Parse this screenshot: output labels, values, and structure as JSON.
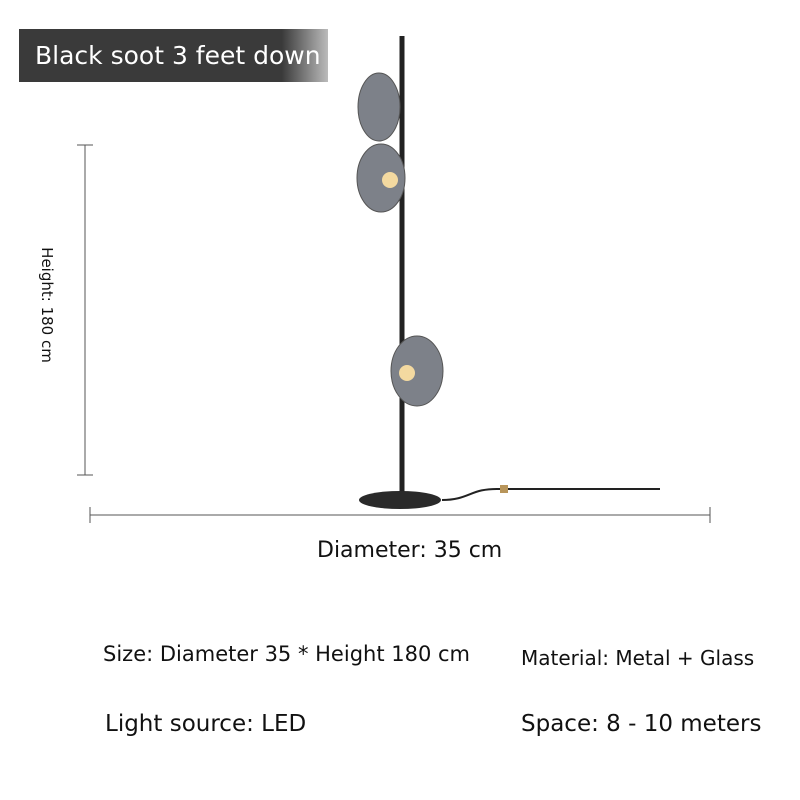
{
  "label": "Black soot 3 feet down",
  "dimensions": {
    "height": "Height: 180 cm",
    "diameter": "Diameter: 35 cm"
  },
  "specs": {
    "size": "Size: Diameter 35 * Height 180 cm",
    "material": "Material: Metal + Glass",
    "light_source": "Light source: LED",
    "space": "Space: 8 - 10 meters"
  }
}
